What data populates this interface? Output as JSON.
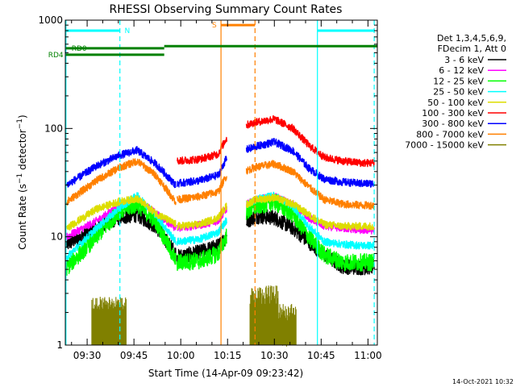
{
  "chart_data": {
    "type": "line",
    "title": "RHESSI Observing Summary Count Rates",
    "xlabel": "Start Time (14-Apr-09 09:23:42)",
    "ylabel": "Count Rate (s⁻¹ detector⁻¹)",
    "y_scale": "log",
    "ylim": [
      1,
      1000
    ],
    "xlim_minutes": [
      563,
      663
    ],
    "x_ticks": [
      {
        "label": "09:30",
        "t": 570
      },
      {
        "label": "09:45",
        "t": 585
      },
      {
        "label": "10:00",
        "t": 600
      },
      {
        "label": "10:15",
        "t": 615
      },
      {
        "label": "10:30",
        "t": 630
      },
      {
        "label": "10:45",
        "t": 645
      },
      {
        "label": "11:00",
        "t": 660
      }
    ],
    "y_ticks": [
      {
        "label": "1",
        "v": 1
      },
      {
        "label": "10",
        "v": 10
      },
      {
        "label": "100",
        "v": 100
      },
      {
        "label": "1000",
        "v": 1000
      }
    ],
    "legend_header": [
      "Det 1,3,4,5,6,9,",
      "FDecim 1, Att 0"
    ],
    "legend_position": "right",
    "gaps": [
      {
        "start": 598.5,
        "end": 598.8
      },
      {
        "start": 614.8,
        "end": 621.0
      }
    ],
    "series": [
      {
        "name": "3 - 6 keV",
        "color": "#000000",
        "points": [
          [
            563.5,
            8.5
          ],
          [
            573,
            12
          ],
          [
            580,
            15
          ],
          [
            586,
            16
          ],
          [
            592,
            12.5
          ],
          [
            598.4,
            7
          ],
          [
            598.9,
            6.5
          ],
          [
            606,
            7.2
          ],
          [
            612,
            8.2
          ],
          [
            614.5,
            10
          ],
          [
            621.3,
            14
          ],
          [
            624,
            15.5
          ],
          [
            630,
            15
          ],
          [
            636,
            12
          ],
          [
            641,
            9
          ],
          [
            646,
            6.8
          ],
          [
            652,
            5.3
          ],
          [
            658,
            5.2
          ],
          [
            662,
            5.3
          ]
        ]
      },
      {
        "name": "6 - 12 keV",
        "color": "#ff00ff",
        "points": [
          [
            563.5,
            10
          ],
          [
            573,
            14
          ],
          [
            580,
            19
          ],
          [
            586,
            22
          ],
          [
            592,
            16.5
          ],
          [
            598.4,
            12
          ],
          [
            598.9,
            12
          ],
          [
            606,
            12.8
          ],
          [
            612,
            14
          ],
          [
            614.5,
            18
          ],
          [
            621.3,
            20
          ],
          [
            624,
            22
          ],
          [
            630,
            23.5
          ],
          [
            636,
            20
          ],
          [
            641,
            15
          ],
          [
            646,
            12.5
          ],
          [
            652,
            12
          ],
          [
            658,
            11.5
          ],
          [
            662,
            11.5
          ]
        ]
      },
      {
        "name": "12 - 25 keV",
        "color": "#00ff00",
        "points": [
          [
            563.5,
            5.2
          ],
          [
            573,
            10
          ],
          [
            580,
            17
          ],
          [
            586,
            20
          ],
          [
            592,
            14
          ],
          [
            598.4,
            6
          ],
          [
            598.9,
            5.8
          ],
          [
            606,
            6
          ],
          [
            612,
            7
          ],
          [
            614.5,
            10
          ],
          [
            621.3,
            17
          ],
          [
            624,
            19
          ],
          [
            630,
            21
          ],
          [
            636,
            16
          ],
          [
            641,
            10
          ],
          [
            646,
            6.8
          ],
          [
            652,
            5.8
          ],
          [
            658,
            5.8
          ],
          [
            662,
            5.8
          ]
        ]
      },
      {
        "name": "25 - 50 keV",
        "color": "#00ffff",
        "points": [
          [
            563.5,
            6.5
          ],
          [
            573,
            12
          ],
          [
            580,
            18
          ],
          [
            586,
            24
          ],
          [
            592,
            16
          ],
          [
            598.4,
            9
          ],
          [
            598.9,
            9
          ],
          [
            606,
            9.5
          ],
          [
            612,
            11
          ],
          [
            614.5,
            14
          ],
          [
            621.3,
            20
          ],
          [
            624,
            22
          ],
          [
            630,
            24
          ],
          [
            636,
            19
          ],
          [
            641,
            12.5
          ],
          [
            646,
            9
          ],
          [
            652,
            8.5
          ],
          [
            658,
            8.3
          ],
          [
            662,
            8.3
          ]
        ]
      },
      {
        "name": "50 - 100 keV",
        "color": "#dddd00",
        "points": [
          [
            563.5,
            12
          ],
          [
            573,
            18
          ],
          [
            580,
            21
          ],
          [
            586,
            22.5
          ],
          [
            592,
            16.5
          ],
          [
            598.4,
            13
          ],
          [
            598.9,
            12.5
          ],
          [
            606,
            13
          ],
          [
            612,
            15
          ],
          [
            614.5,
            19
          ],
          [
            621.3,
            20
          ],
          [
            624,
            22
          ],
          [
            630,
            23
          ],
          [
            636,
            20
          ],
          [
            641,
            16
          ],
          [
            646,
            13
          ],
          [
            652,
            12.5
          ],
          [
            658,
            12.5
          ],
          [
            662,
            12.5
          ]
        ]
      },
      {
        "name": "100 - 300 keV",
        "color": "#ff0000",
        "points": [
          [
            598.9,
            50
          ],
          [
            606,
            52
          ],
          [
            612,
            58
          ],
          [
            614.5,
            80
          ],
          [
            621.3,
            108
          ],
          [
            624,
            114
          ],
          [
            630,
            122
          ],
          [
            636,
            100
          ],
          [
            641,
            70
          ],
          [
            646,
            54
          ],
          [
            652,
            50
          ],
          [
            658,
            48
          ],
          [
            662,
            48
          ]
        ]
      },
      {
        "name": "300 - 800 keV",
        "color": "#0000ff",
        "points": [
          [
            563.5,
            30
          ],
          [
            573,
            45
          ],
          [
            580,
            56
          ],
          [
            586,
            63
          ],
          [
            592,
            47
          ],
          [
            598.4,
            30
          ],
          [
            598.9,
            31
          ],
          [
            606,
            33
          ],
          [
            612,
            37
          ],
          [
            614.5,
            52
          ],
          [
            621.3,
            64
          ],
          [
            624,
            68
          ],
          [
            630,
            75
          ],
          [
            636,
            62
          ],
          [
            641,
            43
          ],
          [
            646,
            34
          ],
          [
            652,
            32
          ],
          [
            658,
            31
          ],
          [
            662,
            31
          ]
        ]
      },
      {
        "name": "800 - 7000 keV",
        "color": "#ff8000",
        "points": [
          [
            563.5,
            21
          ],
          [
            573,
            33
          ],
          [
            580,
            43
          ],
          [
            586,
            50
          ],
          [
            592,
            37
          ],
          [
            598.4,
            21
          ],
          [
            598.9,
            22
          ],
          [
            606,
            23.5
          ],
          [
            612,
            26
          ],
          [
            614.5,
            36
          ],
          [
            621.3,
            41
          ],
          [
            624,
            44
          ],
          [
            630,
            47
          ],
          [
            636,
            40
          ],
          [
            641,
            29
          ],
          [
            646,
            22
          ],
          [
            652,
            20
          ],
          [
            658,
            19.5
          ],
          [
            662,
            19.5
          ]
        ]
      },
      {
        "name": "7000 - 15000 keV",
        "color": "#808000",
        "points": []
      }
    ],
    "olive_blocks": [
      {
        "start": 571.5,
        "end": 582.5,
        "lo": 1.6,
        "hi": 2.8
      },
      {
        "start": 622.2,
        "end": 631.2,
        "lo": 1.6,
        "hi": 3.6
      },
      {
        "start": 631.2,
        "end": 637,
        "lo": 1.2,
        "hi": 2.4
      }
    ],
    "overlays": {
      "vertical_lines": [
        {
          "t": 563.2,
          "color": "#00ffff",
          "style": "solid"
        },
        {
          "t": 580.5,
          "color": "#00ffff",
          "style": "dashed"
        },
        {
          "t": 612.9,
          "color": "#ff8000",
          "style": "solid"
        },
        {
          "t": 623.8,
          "color": "#ff8000",
          "style": "dashed"
        },
        {
          "t": 643.8,
          "color": "#00ffff",
          "style": "solid"
        },
        {
          "t": 662,
          "color": "#00ffff",
          "style": "dashed"
        }
      ],
      "bars": [
        {
          "label": "N",
          "color": "#00ffff",
          "start": 563.2,
          "end": 580.5,
          "v": 800,
          "label_t": 582,
          "label_side": "right"
        },
        {
          "label": "S",
          "color": "#ff8000",
          "start": 612.9,
          "end": 623.8,
          "v": 900,
          "label_t": 611.5,
          "label_side": "left"
        },
        {
          "label": "",
          "color": "#00ffff",
          "start": 643.8,
          "end": 662,
          "v": 800
        },
        {
          "label": "RD0",
          "color": "#008000",
          "start": 563.2,
          "end": 594.7,
          "v": 550,
          "label_t": 565,
          "label_side": "right"
        },
        {
          "label": "RD4",
          "color": "#008000",
          "start": 563.2,
          "end": 594.7,
          "v": 480,
          "label_t": 562.4,
          "label_side": "left"
        },
        {
          "label": "",
          "color": "#008000",
          "start": 594.7,
          "end": 663,
          "v": 575
        }
      ]
    },
    "timestamp": "14-Oct-2021 10:32"
  }
}
